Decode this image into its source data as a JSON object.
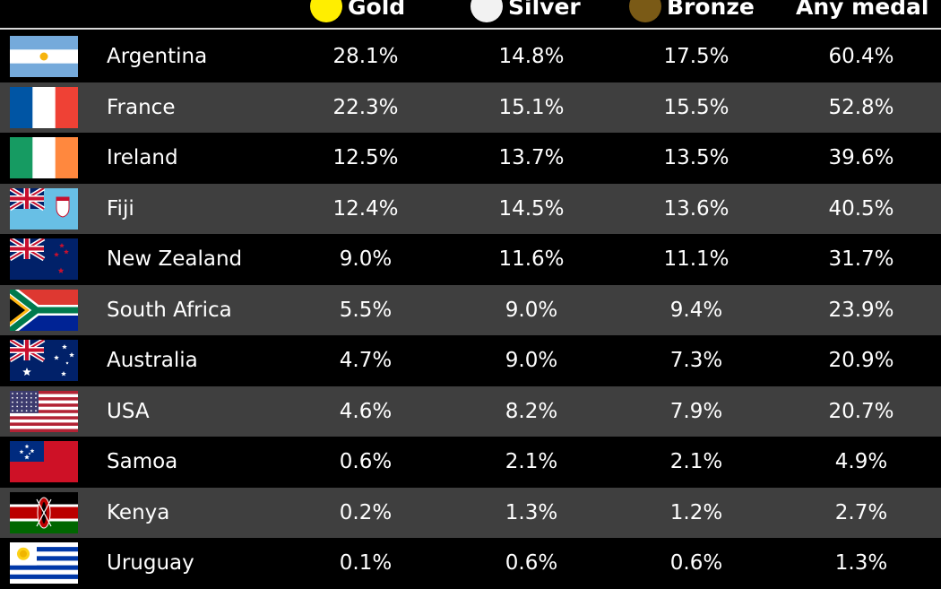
{
  "columns": [
    {
      "label": "Gold",
      "dot_color": "#ffee00"
    },
    {
      "label": "Silver",
      "dot_color": "#f2f2f2"
    },
    {
      "label": "Bronze",
      "dot_color": "#7a5a16"
    },
    {
      "label": "Any medal",
      "dot_color": ""
    }
  ],
  "rows": [
    {
      "country": "Argentina",
      "flag": "argentina-flag-icon",
      "gold": "28.1%",
      "silver": "14.8%",
      "bronze": "17.5%",
      "any": "60.4%"
    },
    {
      "country": "France",
      "flag": "france-flag-icon",
      "gold": "22.3%",
      "silver": "15.1%",
      "bronze": "15.5%",
      "any": "52.8%"
    },
    {
      "country": "Ireland",
      "flag": "ireland-flag-icon",
      "gold": "12.5%",
      "silver": "13.7%",
      "bronze": "13.5%",
      "any": "39.6%"
    },
    {
      "country": "Fiji",
      "flag": "fiji-flag-icon",
      "gold": "12.4%",
      "silver": "14.5%",
      "bronze": "13.6%",
      "any": "40.5%"
    },
    {
      "country": "New Zealand",
      "flag": "new-zealand-flag-icon",
      "gold": "9.0%",
      "silver": "11.6%",
      "bronze": "11.1%",
      "any": "31.7%"
    },
    {
      "country": "South Africa",
      "flag": "south-africa-flag-icon",
      "gold": "5.5%",
      "silver": "9.0%",
      "bronze": "9.4%",
      "any": "23.9%"
    },
    {
      "country": "Australia",
      "flag": "australia-flag-icon",
      "gold": "4.7%",
      "silver": "9.0%",
      "bronze": "7.3%",
      "any": "20.9%"
    },
    {
      "country": "USA",
      "flag": "usa-flag-icon",
      "gold": "4.6%",
      "silver": "8.2%",
      "bronze": "7.9%",
      "any": "20.7%"
    },
    {
      "country": "Samoa",
      "flag": "samoa-flag-icon",
      "gold": "0.6%",
      "silver": "2.1%",
      "bronze": "2.1%",
      "any": "4.9%"
    },
    {
      "country": "Kenya",
      "flag": "kenya-flag-icon",
      "gold": "0.2%",
      "silver": "1.3%",
      "bronze": "1.2%",
      "any": "2.7%"
    },
    {
      "country": "Uruguay",
      "flag": "uruguay-flag-icon",
      "gold": "0.1%",
      "silver": "0.6%",
      "bronze": "0.6%",
      "any": "1.3%"
    }
  ]
}
